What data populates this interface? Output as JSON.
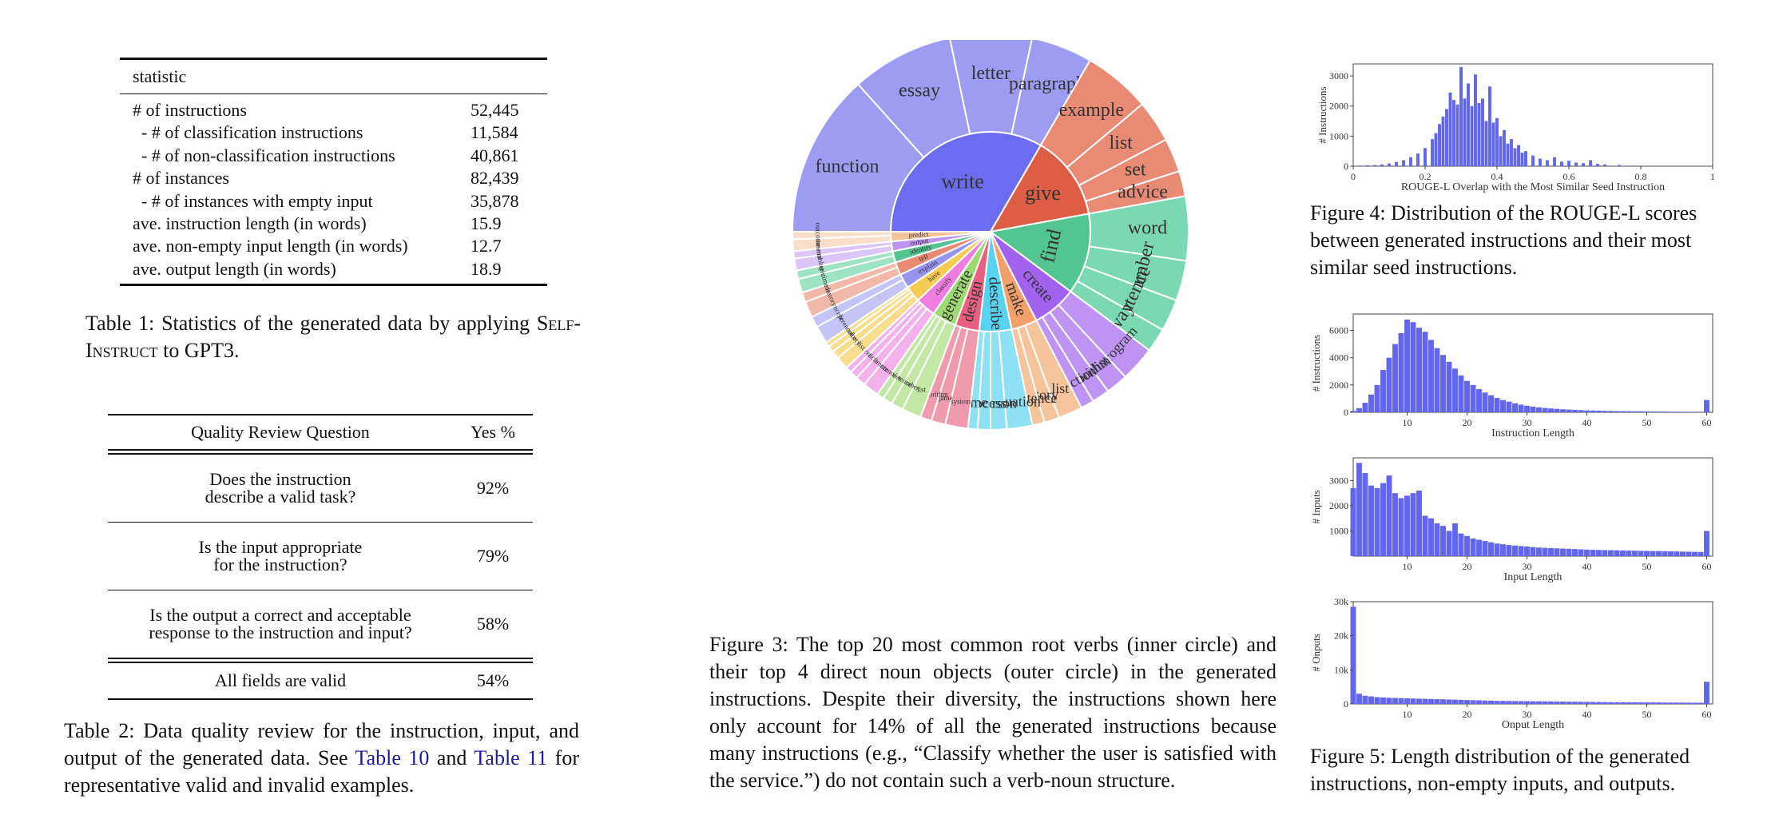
{
  "table1": {
    "header": "statistic",
    "rows": [
      {
        "label": "# of instructions",
        "value": "52,445"
      },
      {
        "label": "  - # of classification instructions",
        "value": "11,584"
      },
      {
        "label": "  - # of non-classification instructions",
        "value": "40,861"
      },
      {
        "label": "# of instances",
        "value": "82,439"
      },
      {
        "label": "  - # of instances with empty input",
        "value": "35,878"
      },
      {
        "label": "ave. instruction length (in words)",
        "value": "15.9"
      },
      {
        "label": "ave. non-empty input length (in words)",
        "value": "12.7"
      },
      {
        "label": "ave. output length (in words)",
        "value": "18.9"
      }
    ],
    "caption_prefix": "Table 1:  Statistics of the generated data by applying",
    "caption_method": "Self-Instruct",
    "caption_suffix": " to GPT3."
  },
  "table2": {
    "col_question": "Quality Review Question",
    "col_yes": "Yes %",
    "rows": [
      {
        "q1": "Does the instruction",
        "q2": "describe a valid task?",
        "yes": "92%"
      },
      {
        "q1": "Is the input appropriate",
        "q2": "for the instruction?",
        "yes": "79%"
      },
      {
        "q1": "Is the output a correct and acceptable",
        "q2": "response to the instruction and input?",
        "yes": "58%"
      }
    ],
    "final_q": "All fields are valid",
    "final_yes": "54%",
    "caption_a": "Table 2: Data quality review for the instruction, input, and output of the generated data.  See ",
    "caption_link1": "Table 10",
    "caption_b": " and ",
    "caption_link2": "Table 11",
    "caption_c": " for representative valid and invalid examples."
  },
  "figure3": {
    "caption": "Figure 3: The top 20 most common root verbs (inner circle) and their top 4 direct noun objects (outer circle) in the generated instructions. Despite their diversity, the instructions shown here only account for 14% of all the generated instructions because many instructions (e.g., “Classify whether the user is satisfied with the service.”) do not contain such a verb-noun structure.",
    "verbs": [
      {
        "verb": "write",
        "color": "#6b6cf0",
        "light": "#9b9cf2",
        "nouns": [
          "function",
          "essay",
          "letter",
          "paragraph"
        ]
      },
      {
        "verb": "give",
        "color": "#de5d45",
        "light": "#e98a75",
        "nouns": [
          "example",
          "list",
          "set",
          "advice"
        ]
      },
      {
        "verb": "find",
        "color": "#52c590",
        "light": "#7ad8b2",
        "nouns": [
          "word",
          "number",
          "sentence",
          "way"
        ]
      },
      {
        "verb": "create",
        "color": "#a163ef",
        "light": "#bf93f3",
        "nouns": [
          "program",
          "list",
          "algorithm",
          "function"
        ]
      },
      {
        "verb": "make",
        "color": "#f4a06a",
        "light": "#f6c39b",
        "nouns": [
          "list",
          "story",
          "sentence"
        ]
      },
      {
        "verb": "describe",
        "color": "#57d2ef",
        "light": "#8ee0f4",
        "nouns": [
          "situation",
          "person",
          "process",
          "time"
        ]
      },
      {
        "verb": "design",
        "color": "#e85f80",
        "light": "#f09aae",
        "nouns": [
          "system",
          "game",
          "algorithm"
        ]
      },
      {
        "verb": "generate",
        "color": "#9ed870",
        "light": "#c3e7a5",
        "nouns": [
          "list",
          "number",
          "sentence",
          "series"
        ]
      },
      {
        "verb": "classify",
        "color": "#f07de0",
        "light": "#f4b2ec",
        "nouns": [
          "sentence",
          "sentiment",
          "article",
          "text"
        ]
      },
      {
        "verb": "have",
        "color": "#f5cb52",
        "light": "#f8dd8e",
        "nouns": [
          "list",
          "story",
          "color",
          "word"
        ]
      },
      {
        "verb": "explain",
        "color": "#9795f0",
        "light": "#c5c4f6",
        "nouns": [
          "difference",
          "concept"
        ]
      },
      {
        "verb": "tell",
        "color": "#e98a75",
        "light": "#f2b8a9",
        "nouns": [
          "story",
          "joke"
        ]
      },
      {
        "verb": "identify",
        "color": "#52c590",
        "light": "#9de3c4",
        "nouns": [
          "sentiment",
          "topic"
        ]
      },
      {
        "verb": "output",
        "color": "#bf93f3",
        "light": "#dcc5f8",
        "nouns": [
          "number",
          "word"
        ]
      },
      {
        "verb": "predict",
        "color": "#f6c39b",
        "light": "#f9dfc9",
        "nouns": [
          "sentiment",
          "outcome"
        ]
      }
    ]
  },
  "figure4": {
    "caption": "Figure 4: Distribution of the ROUGE-L scores between generated instructions and their most similar seed instructions.",
    "chart_data": {
      "type": "bar",
      "xlabel": "ROUGE-L Overlap with the Most Similar Seed Instruction",
      "ylabel": "# Instructions",
      "xlim": [
        0,
        1
      ],
      "ylim": [
        0,
        3400
      ],
      "xticks": [
        "0",
        "0.2",
        "0.4",
        "0.6",
        "0.8",
        "1"
      ],
      "yticks": [
        "0",
        "1000",
        "2000",
        "3000"
      ],
      "x": [
        0.02,
        0.04,
        0.06,
        0.08,
        0.1,
        0.12,
        0.14,
        0.16,
        0.18,
        0.2,
        0.22,
        0.23,
        0.24,
        0.25,
        0.26,
        0.27,
        0.28,
        0.29,
        0.3,
        0.31,
        0.32,
        0.33,
        0.34,
        0.35,
        0.36,
        0.37,
        0.38,
        0.39,
        0.4,
        0.41,
        0.42,
        0.43,
        0.44,
        0.45,
        0.46,
        0.47,
        0.48,
        0.5,
        0.52,
        0.54,
        0.56,
        0.58,
        0.6,
        0.62,
        0.64,
        0.66,
        0.68,
        0.7,
        0.74,
        0.78
      ],
      "values": [
        20,
        30,
        40,
        60,
        90,
        140,
        200,
        300,
        420,
        600,
        900,
        1100,
        1400,
        1650,
        1900,
        2450,
        2200,
        2050,
        3300,
        2250,
        2750,
        2000,
        3050,
        2100,
        2250,
        1500,
        2650,
        1450,
        1600,
        1000,
        1200,
        750,
        900,
        600,
        700,
        450,
        500,
        350,
        250,
        200,
        300,
        150,
        180,
        120,
        100,
        200,
        80,
        60,
        40,
        20
      ]
    }
  },
  "figure5": {
    "caption": "Figure 5: Length distribution of the generated instructions, non-empty inputs, and outputs.",
    "charts": [
      {
        "type": "bar",
        "xlabel": "Instruction Length",
        "ylabel": "# Instructions",
        "xlim": [
          1,
          61
        ],
        "ylim": [
          0,
          7200
        ],
        "xticks": [
          "10",
          "20",
          "30",
          "40",
          "50",
          "60"
        ],
        "yticks": [
          "0",
          "2000",
          "4000",
          "6000"
        ],
        "x": [
          1,
          2,
          3,
          4,
          5,
          6,
          7,
          8,
          9,
          10,
          11,
          12,
          13,
          14,
          15,
          16,
          17,
          18,
          19,
          20,
          21,
          22,
          23,
          24,
          25,
          26,
          27,
          28,
          29,
          30,
          31,
          32,
          33,
          34,
          35,
          36,
          37,
          38,
          39,
          40,
          41,
          42,
          43,
          44,
          45,
          46,
          47,
          48,
          49,
          50,
          51,
          52,
          53,
          54,
          55,
          56,
          57,
          58,
          59,
          60
        ],
        "values": [
          100,
          300,
          700,
          1300,
          2000,
          3100,
          4000,
          5000,
          5800,
          6800,
          6600,
          6200,
          5900,
          5300,
          4700,
          4200,
          3700,
          3200,
          2700,
          2300,
          2000,
          1700,
          1450,
          1250,
          1050,
          900,
          780,
          660,
          560,
          480,
          420,
          360,
          320,
          280,
          250,
          220,
          200,
          180,
          160,
          140,
          130,
          120,
          110,
          100,
          90,
          85,
          80,
          75,
          70,
          65,
          60,
          55,
          50,
          48,
          45,
          42,
          40,
          38,
          36,
          900
        ]
      },
      {
        "type": "bar",
        "xlabel": "Input Length",
        "ylabel": "# Inputs",
        "xlim": [
          1,
          61
        ],
        "ylim": [
          0,
          3900
        ],
        "xticks": [
          "10",
          "20",
          "30",
          "40",
          "50",
          "60"
        ],
        "yticks": [
          "1000",
          "2000",
          "3000"
        ],
        "x": [
          1,
          2,
          3,
          4,
          5,
          6,
          7,
          8,
          9,
          10,
          11,
          12,
          13,
          14,
          15,
          16,
          17,
          18,
          19,
          20,
          21,
          22,
          23,
          24,
          25,
          26,
          27,
          28,
          29,
          30,
          31,
          32,
          33,
          34,
          35,
          36,
          37,
          38,
          39,
          40,
          41,
          42,
          43,
          44,
          45,
          46,
          47,
          48,
          49,
          50,
          51,
          52,
          53,
          54,
          55,
          56,
          57,
          58,
          59,
          60
        ],
        "values": [
          2700,
          3700,
          3300,
          2800,
          2700,
          2900,
          3200,
          2500,
          2300,
          2400,
          2500,
          2600,
          1600,
          1500,
          1300,
          1200,
          1000,
          1300,
          900,
          800,
          700,
          650,
          600,
          550,
          500,
          470,
          440,
          420,
          400,
          380,
          360,
          340,
          330,
          320,
          310,
          300,
          290,
          280,
          270,
          260,
          250,
          245,
          240,
          235,
          230,
          225,
          220,
          215,
          210,
          205,
          200,
          200,
          195,
          190,
          185,
          180,
          175,
          170,
          165,
          1000
        ]
      },
      {
        "type": "bar",
        "xlabel": "Onput Length",
        "ylabel": "# Onputs",
        "xlim": [
          1,
          61
        ],
        "ylim": [
          0,
          30000
        ],
        "xticks": [
          "10",
          "20",
          "30",
          "40",
          "50",
          "60"
        ],
        "yticks": [
          "0",
          "10k",
          "20k",
          "30k"
        ],
        "x": [
          1,
          2,
          3,
          4,
          5,
          6,
          7,
          8,
          9,
          10,
          11,
          12,
          13,
          14,
          15,
          16,
          17,
          18,
          19,
          20,
          21,
          22,
          23,
          24,
          25,
          26,
          27,
          28,
          29,
          30,
          31,
          32,
          33,
          34,
          35,
          36,
          37,
          38,
          39,
          40,
          41,
          42,
          43,
          44,
          45,
          46,
          47,
          48,
          49,
          50,
          51,
          52,
          53,
          54,
          55,
          56,
          57,
          58,
          59,
          60
        ],
        "values": [
          28500,
          3000,
          2400,
          2200,
          2000,
          1900,
          1800,
          1750,
          1700,
          1650,
          1600,
          1550,
          1500,
          1450,
          1400,
          1350,
          1300,
          1250,
          1200,
          1150,
          1100,
          1050,
          1000,
          950,
          900,
          880,
          860,
          840,
          820,
          800,
          780,
          760,
          740,
          720,
          700,
          680,
          660,
          640,
          620,
          600,
          580,
          560,
          540,
          520,
          500,
          490,
          480,
          470,
          460,
          450,
          440,
          430,
          420,
          410,
          400,
          390,
          380,
          370,
          360,
          6500
        ]
      }
    ]
  }
}
